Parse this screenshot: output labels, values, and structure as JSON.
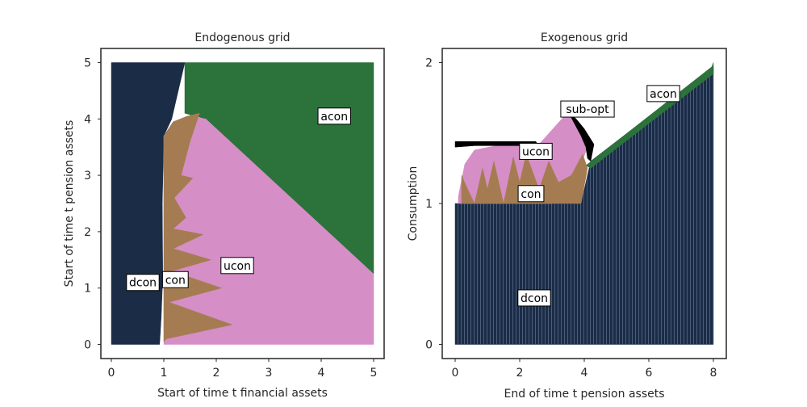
{
  "colors": {
    "dcon": "#1b2c47",
    "con": "#a57c52",
    "ucon": "#d58ec6",
    "acon": "#2c723b",
    "sub_opt": "#000000"
  },
  "chart_data": [
    {
      "type": "area",
      "title": "Endogenous grid",
      "xlabel": "Start of time t financial assets",
      "ylabel": "Start of time t pension assets",
      "xlim": [
        -0.2,
        5.2
      ],
      "ylim": [
        -0.25,
        5.25
      ],
      "xticks": [
        "0",
        "1",
        "2",
        "3",
        "4",
        "5"
      ],
      "yticks": [
        "0",
        "1",
        "2",
        "3",
        "4",
        "5"
      ],
      "grid": false,
      "region_labels": [
        {
          "key": "dcon",
          "text": "dcon",
          "x": 0.6,
          "y": 1.1
        },
        {
          "key": "con",
          "text": "con",
          "x": 1.22,
          "y": 1.15
        },
        {
          "key": "ucon",
          "text": "ucon",
          "x": 2.4,
          "y": 1.4
        },
        {
          "key": "acon",
          "text": "acon",
          "x": 4.25,
          "y": 4.05
        }
      ],
      "regions": [
        {
          "key": "acon",
          "points": [
            [
              1.4,
              4.1
            ],
            [
              1.4,
              5.0
            ],
            [
              5.0,
              5.0
            ],
            [
              5.0,
              1.25
            ],
            [
              1.8,
              4.0
            ]
          ]
        },
        {
          "key": "dcon",
          "points": [
            [
              0.0,
              0.0
            ],
            [
              0.0,
              5.0
            ],
            [
              1.4,
              5.0
            ],
            [
              1.15,
              4.0
            ],
            [
              1.0,
              3.7
            ],
            [
              0.97,
              2.5
            ],
            [
              0.98,
              1.2
            ],
            [
              0.95,
              0.5
            ],
            [
              0.92,
              0.0
            ]
          ]
        },
        {
          "key": "ucon",
          "points": [
            [
              1.0,
              3.7
            ],
            [
              1.18,
              3.95
            ],
            [
              1.45,
              4.05
            ],
            [
              1.8,
              4.0
            ],
            [
              5.0,
              1.25
            ],
            [
              5.0,
              0.0
            ],
            [
              1.0,
              0.0
            ]
          ]
        },
        {
          "key": "con",
          "points": [
            [
              1.0,
              3.7
            ],
            [
              1.18,
              3.95
            ],
            [
              1.45,
              4.05
            ],
            [
              1.68,
              4.1
            ],
            [
              1.5,
              3.6
            ],
            [
              1.33,
              3.0
            ],
            [
              1.55,
              2.95
            ],
            [
              1.2,
              2.6
            ],
            [
              1.42,
              2.25
            ],
            [
              1.18,
              2.05
            ],
            [
              1.75,
              1.95
            ],
            [
              1.18,
              1.7
            ],
            [
              1.9,
              1.5
            ],
            [
              1.15,
              1.3
            ],
            [
              2.1,
              1.0
            ],
            [
              1.1,
              0.75
            ],
            [
              2.3,
              0.35
            ],
            [
              1.05,
              0.1
            ],
            [
              1.0,
              0.05
            ]
          ]
        }
      ]
    },
    {
      "type": "area",
      "title": "Exogenous grid",
      "xlabel": "End of time t pension assets",
      "ylabel": "Consumption",
      "xlim": [
        -0.4,
        8.4
      ],
      "ylim": [
        -0.1,
        2.1
      ],
      "xticks": [
        "0",
        "2",
        "4",
        "6",
        "8"
      ],
      "yticks": [
        "0",
        "1",
        "2"
      ],
      "grid": false,
      "region_labels": [
        {
          "key": "dcon",
          "text": "dcon",
          "x": 2.45,
          "y": 0.33
        },
        {
          "key": "con",
          "text": "con",
          "x": 2.35,
          "y": 1.07
        },
        {
          "key": "ucon",
          "text": "ucon",
          "x": 2.5,
          "y": 1.37
        },
        {
          "key": "sub_opt",
          "text": "sub-opt",
          "x": 4.1,
          "y": 1.67
        },
        {
          "key": "acon",
          "text": "acon",
          "x": 6.45,
          "y": 1.78
        }
      ],
      "regions": [
        {
          "key": "dcon",
          "points": [
            [
              0.0,
              0.0
            ],
            [
              0.0,
              1.0
            ],
            [
              3.9,
              1.0
            ],
            [
              4.2,
              1.3
            ],
            [
              8.0,
              1.97
            ],
            [
              8.0,
              0.0
            ]
          ]
        },
        {
          "key": "acon",
          "points": [
            [
              4.05,
              1.27
            ],
            [
              7.95,
              1.97
            ],
            [
              8.0,
              2.0
            ],
            [
              8.0,
              1.92
            ],
            [
              4.2,
              1.25
            ]
          ]
        },
        {
          "key": "ucon",
          "points": [
            [
              0.1,
              1.05
            ],
            [
              0.3,
              1.28
            ],
            [
              0.6,
              1.38
            ],
            [
              1.5,
              1.42
            ],
            [
              2.6,
              1.42
            ],
            [
              3.5,
              1.65
            ],
            [
              4.1,
              1.4
            ],
            [
              3.9,
              1.28
            ],
            [
              3.6,
              1.12
            ],
            [
              3.0,
              1.0
            ],
            [
              0.1,
              1.0
            ]
          ]
        },
        {
          "key": "sub_opt",
          "points": [
            [
              3.5,
              1.65
            ],
            [
              3.75,
              1.6
            ],
            [
              4.0,
              1.53
            ],
            [
              4.3,
              1.42
            ],
            [
              4.2,
              1.3
            ],
            [
              4.1,
              1.32
            ],
            [
              4.05,
              1.4
            ],
            [
              3.9,
              1.48
            ]
          ]
        },
        {
          "key": "sub_opt",
          "points": [
            [
              0.0,
              1.44
            ],
            [
              2.5,
              1.44
            ],
            [
              2.6,
              1.4
            ],
            [
              2.0,
              1.41
            ],
            [
              0.6,
              1.41
            ],
            [
              0.0,
              1.4
            ]
          ]
        },
        {
          "key": "con",
          "points": [
            [
              0.2,
              1.0
            ],
            [
              0.2,
              1.2
            ],
            [
              0.35,
              1.12
            ],
            [
              0.6,
              1.0
            ],
            [
              0.85,
              1.25
            ],
            [
              1.0,
              1.1
            ],
            [
              1.2,
              1.3
            ],
            [
              1.5,
              1.0
            ],
            [
              1.8,
              1.33
            ],
            [
              2.0,
              1.15
            ],
            [
              2.2,
              1.35
            ],
            [
              2.6,
              1.1
            ],
            [
              2.9,
              1.3
            ],
            [
              3.2,
              1.15
            ],
            [
              3.6,
              1.2
            ],
            [
              3.95,
              1.35
            ],
            [
              4.1,
              1.25
            ],
            [
              3.9,
              1.0
            ]
          ]
        }
      ]
    }
  ]
}
